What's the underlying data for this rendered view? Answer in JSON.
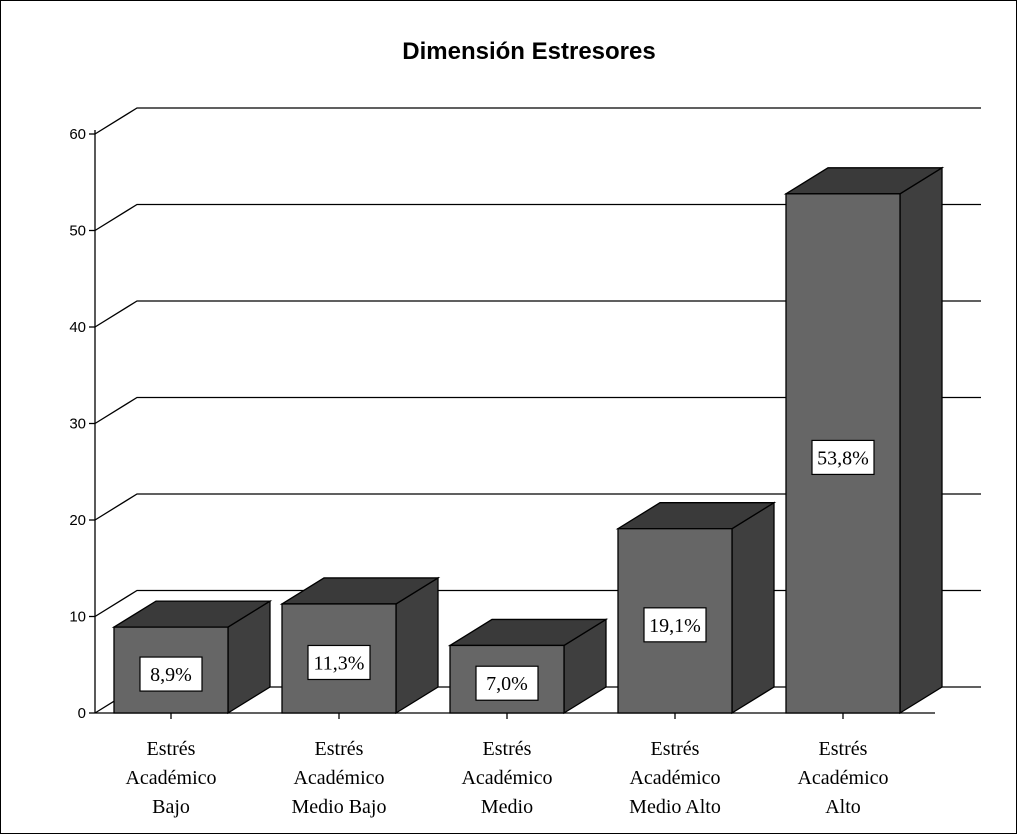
{
  "chart_data": {
    "type": "bar",
    "title": "Dimensión Estresores",
    "xlabel": "",
    "ylabel": "",
    "ylim": [
      0,
      60
    ],
    "yticks": [
      0,
      10,
      20,
      30,
      40,
      50,
      60
    ],
    "grid": true,
    "style": "3d",
    "categories": [
      [
        "Estrés",
        "Académico",
        "Bajo"
      ],
      [
        "Estrés",
        "Académico",
        "Medio Bajo"
      ],
      [
        "Estrés",
        "Académico",
        "Medio"
      ],
      [
        "Estrés",
        "Académico",
        "Medio Alto"
      ],
      [
        "Estrés",
        "Académico",
        "Alto"
      ]
    ],
    "values": [
      8.9,
      11.3,
      7.0,
      19.1,
      53.8
    ],
    "data_labels": [
      "8,9%",
      "11,3%",
      "7,0%",
      "19,1%",
      "53,8%"
    ],
    "colors": {
      "bar_front": "#666666",
      "bar_top": "#3a3a3a",
      "bar_side": "#3f3f3f",
      "outline": "#000000",
      "grid": "#000000"
    }
  }
}
